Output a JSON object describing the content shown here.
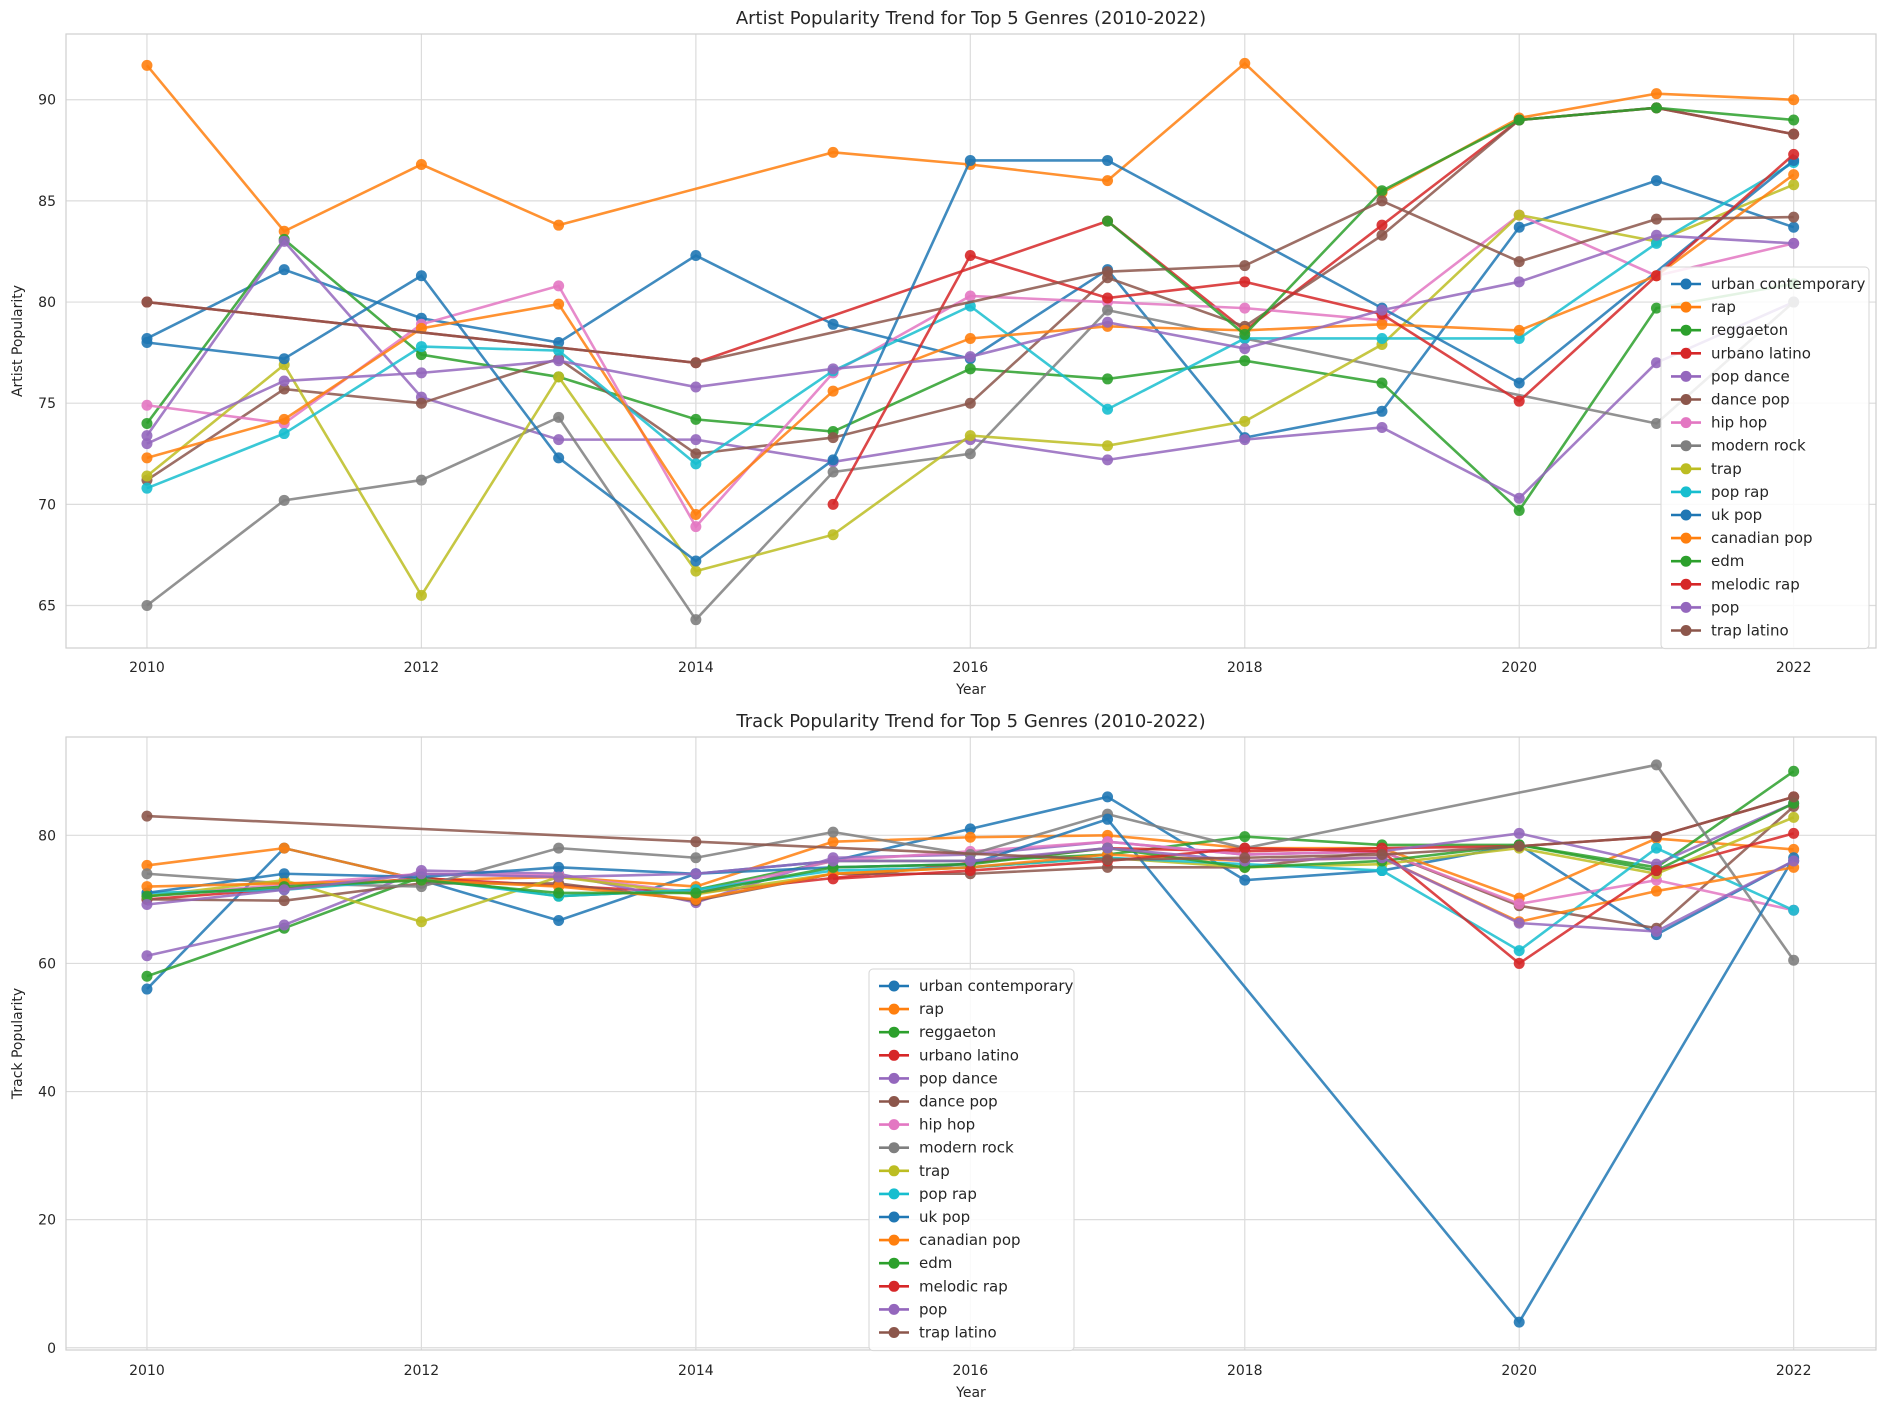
{
  "chart_data": [
    {
      "type": "line",
      "title": "Artist Popularity Trend for Top 5 Genres (2010-2022)",
      "xlabel": "Year",
      "ylabel": "Artist Popularity",
      "xlim": [
        2009.41,
        2022.6
      ],
      "ylim": [
        62.9,
        93.25
      ],
      "xticks": [
        2010,
        2012,
        2014,
        2016,
        2018,
        2020,
        2022
      ],
      "yticks": [
        65,
        70,
        75,
        80,
        85,
        90
      ],
      "grid": true,
      "legend_position": "right",
      "x": [
        2010,
        2011,
        2012,
        2013,
        2014,
        2015,
        2016,
        2017,
        2018,
        2019,
        2020,
        2021,
        2022
      ],
      "series": [
        {
          "name": "urban contemporary",
          "color": "#1f77b4",
          "values": [
            78.2,
            81.6,
            79.2,
            78.0,
            82.3,
            78.9,
            77.2,
            81.6,
            73.3,
            74.6,
            83.7,
            86.0,
            83.7
          ]
        },
        {
          "name": "rap",
          "color": "#ff7f0e",
          "values": [
            91.7,
            83.5,
            86.8,
            83.8,
            null,
            87.4,
            86.8,
            86.0,
            91.8,
            85.4,
            89.1,
            90.3,
            90.0
          ]
        },
        {
          "name": "reggaeton",
          "color": "#2ca02c",
          "values": [
            74.0,
            83.1,
            77.4,
            76.3,
            74.2,
            73.6,
            76.7,
            76.2,
            77.1,
            76.0,
            69.7,
            79.7,
            80.9
          ]
        },
        {
          "name": "urbano latino",
          "color": "#d62728",
          "values": [
            80.0,
            null,
            null,
            null,
            77.0,
            null,
            null,
            84.0,
            78.6,
            83.8,
            89.0,
            89.6,
            88.3
          ]
        },
        {
          "name": "pop dance",
          "color": "#9467bd",
          "values": [
            73.4,
            83.0,
            75.3,
            73.2,
            73.2,
            72.1,
            73.2,
            72.2,
            73.2,
            73.8,
            70.3,
            77.0,
            80.0
          ]
        },
        {
          "name": "dance pop",
          "color": "#8c564b",
          "values": [
            71.2,
            75.7,
            75.0,
            77.2,
            72.5,
            73.3,
            75.0,
            81.2,
            78.8,
            83.3,
            89.0,
            89.6,
            88.3
          ]
        },
        {
          "name": "hip hop",
          "color": "#e377c2",
          "values": [
            74.9,
            74.0,
            78.9,
            80.8,
            68.9,
            76.5,
            80.3,
            80.0,
            79.7,
            79.1,
            84.3,
            81.3,
            82.9
          ]
        },
        {
          "name": "modern rock",
          "color": "#7f7f7f",
          "values": [
            65.0,
            70.2,
            71.2,
            74.3,
            64.3,
            71.6,
            72.5,
            79.6,
            78.2,
            null,
            null,
            74.0,
            80.0
          ]
        },
        {
          "name": "trap",
          "color": "#bcbd22",
          "values": [
            71.4,
            76.9,
            65.5,
            76.3,
            66.7,
            68.5,
            73.4,
            72.9,
            74.1,
            77.9,
            84.3,
            83.0,
            85.8
          ]
        },
        {
          "name": "pop rap",
          "color": "#17becf",
          "values": [
            70.8,
            73.5,
            77.8,
            77.6,
            72.0,
            76.6,
            79.8,
            74.7,
            78.2,
            78.2,
            78.2,
            82.9,
            86.9
          ]
        },
        {
          "name": "uk pop",
          "color": "#1f77b4",
          "values": [
            78.0,
            77.2,
            81.3,
            72.3,
            67.2,
            72.2,
            87.0,
            87.0,
            null,
            79.7,
            76.0,
            null,
            87.0
          ]
        },
        {
          "name": "canadian pop",
          "color": "#ff7f0e",
          "values": [
            72.3,
            74.2,
            78.7,
            79.9,
            69.5,
            75.6,
            78.2,
            78.8,
            78.6,
            78.9,
            78.6,
            81.3,
            86.3
          ]
        },
        {
          "name": "edm",
          "color": "#2ca02c",
          "values": [
            null,
            null,
            null,
            null,
            null,
            null,
            null,
            84.0,
            78.4,
            85.5,
            89.0,
            89.6,
            89.0
          ]
        },
        {
          "name": "melodic rap",
          "color": "#d62728",
          "values": [
            null,
            null,
            null,
            null,
            null,
            70.0,
            82.3,
            80.2,
            81.0,
            79.4,
            75.1,
            81.3,
            87.3
          ]
        },
        {
          "name": "pop",
          "color": "#9467bd",
          "values": [
            73.0,
            76.1,
            76.5,
            77.1,
            75.8,
            76.7,
            77.3,
            79.0,
            77.7,
            79.6,
            81.0,
            83.3,
            82.9
          ]
        },
        {
          "name": "trap latino",
          "color": "#8c564b",
          "values": [
            80.0,
            null,
            null,
            null,
            77.0,
            null,
            null,
            81.5,
            81.8,
            85.0,
            82.0,
            84.1,
            84.2
          ]
        }
      ]
    },
    {
      "type": "line",
      "title": "Track Popularity Trend for Top 5 Genres (2010-2022)",
      "xlabel": "Year",
      "ylabel": "Track Popularity",
      "xlim": [
        2009.41,
        2022.6
      ],
      "ylim": [
        -0.35,
        95.35
      ],
      "xticks": [
        2010,
        2012,
        2014,
        2016,
        2018,
        2020,
        2022
      ],
      "yticks": [
        0,
        20,
        40,
        60,
        80
      ],
      "grid": true,
      "legend_position": "lower center",
      "x": [
        2010,
        2011,
        2012,
        2013,
        2014,
        2015,
        2016,
        2017,
        2018,
        2019,
        2020,
        2021,
        2022
      ],
      "series": [
        {
          "name": "urban contemporary",
          "color": "#1f77b4",
          "values": [
            56.0,
            78.0,
            73.0,
            66.7,
            74.0,
            76.0,
            81.0,
            86.0,
            73.0,
            74.5,
            78.5,
            64.5,
            76.0
          ]
        },
        {
          "name": "rap",
          "color": "#ff7f0e",
          "values": [
            75.3,
            78.0,
            73.0,
            73.5,
            72.0,
            79.0,
            79.7,
            80.0,
            78.0,
            78.0,
            70.2,
            79.5,
            77.8
          ]
        },
        {
          "name": "reggaeton",
          "color": "#2ca02c",
          "values": [
            58.0,
            65.5,
            73.5,
            70.5,
            71.5,
            76.0,
            76.0,
            77.0,
            79.8,
            78.5,
            78.5,
            75.0,
            90.0
          ]
        },
        {
          "name": "urbano latino",
          "color": "#d62728",
          "values": [
            70.0,
            null,
            73.3,
            null,
            71.0,
            null,
            null,
            78.0,
            77.5,
            78.0,
            78.3,
            79.8,
            86.0
          ]
        },
        {
          "name": "pop dance",
          "color": "#9467bd",
          "values": [
            61.2,
            66.0,
            74.5,
            74.0,
            69.5,
            76.5,
            77.0,
            79.0,
            77.0,
            77.5,
            80.3,
            75.5,
            85.0
          ]
        },
        {
          "name": "dance pop",
          "color": "#8c564b",
          "values": [
            70.0,
            69.8,
            72.5,
            72.5,
            69.8,
            74.0,
            74.0,
            75.0,
            75.0,
            77.5,
            69.0,
            65.5,
            84.5
          ]
        },
        {
          "name": "hip hop",
          "color": "#e377c2",
          "values": [
            70.5,
            72.3,
            74.0,
            73.7,
            71.0,
            76.0,
            77.5,
            79.0,
            77.0,
            77.5,
            69.3,
            73.0,
            68.3
          ]
        },
        {
          "name": "modern rock",
          "color": "#7f7f7f",
          "values": [
            74.0,
            72.5,
            72.0,
            78.0,
            76.5,
            80.5,
            77.0,
            83.3,
            78.0,
            null,
            null,
            91.0,
            60.5
          ]
        },
        {
          "name": "trap",
          "color": "#bcbd22",
          "values": [
            70.5,
            73.0,
            66.5,
            73.5,
            70.8,
            74.0,
            75.0,
            76.5,
            75.0,
            75.5,
            78.0,
            74.0,
            82.8
          ]
        },
        {
          "name": "pop rap",
          "color": "#17becf",
          "values": [
            71.0,
            71.5,
            73.2,
            70.5,
            71.5,
            74.5,
            75.0,
            76.5,
            75.5,
            74.5,
            62.0,
            78.0,
            68.3
          ]
        },
        {
          "name": "uk pop",
          "color": "#1f77b4",
          "values": [
            71.0,
            74.0,
            73.5,
            75.0,
            74.0,
            75.0,
            75.5,
            82.5,
            null,
            null,
            4.0,
            null,
            76.5
          ]
        },
        {
          "name": "canadian pop",
          "color": "#ff7f0e",
          "values": [
            72.0,
            72.5,
            73.0,
            72.0,
            70.0,
            74.0,
            75.0,
            77.0,
            76.0,
            76.5,
            66.5,
            71.3,
            75.0
          ]
        },
        {
          "name": "edm",
          "color": "#2ca02c",
          "values": [
            70.5,
            72.0,
            73.0,
            71.0,
            71.0,
            75.0,
            75.5,
            78.0,
            75.0,
            76.0,
            78.5,
            74.5,
            85.0
          ]
        },
        {
          "name": "melodic rap",
          "color": "#d62728",
          "values": [
            null,
            null,
            null,
            null,
            null,
            73.2,
            74.5,
            76.0,
            78.0,
            77.5,
            60.0,
            74.5,
            80.3
          ]
        },
        {
          "name": "pop",
          "color": "#9467bd",
          "values": [
            69.2,
            71.5,
            74.0,
            73.5,
            74.0,
            76.0,
            76.0,
            78.0,
            76.0,
            76.5,
            66.3,
            65.0,
            76.0
          ]
        },
        {
          "name": "trap latino",
          "color": "#8c564b",
          "values": [
            83.0,
            null,
            null,
            null,
            79.0,
            null,
            null,
            76.2,
            76.5,
            77.0,
            78.3,
            79.8,
            86.0
          ]
        }
      ]
    }
  ]
}
